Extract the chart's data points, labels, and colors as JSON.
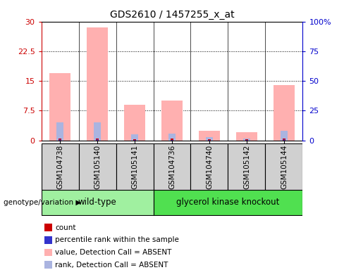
{
  "title": "GDS2610 / 1457255_x_at",
  "samples": [
    "GSM104738",
    "GSM105140",
    "GSM105141",
    "GSM104736",
    "GSM104740",
    "GSM105142",
    "GSM105144"
  ],
  "group_labels": [
    "wild-type",
    "glycerol kinase knockout"
  ],
  "wt_count": 3,
  "ko_count": 4,
  "pink_bars": [
    17.0,
    28.5,
    9.0,
    10.0,
    2.5,
    2.0,
    14.0
  ],
  "blue_bars": [
    4.5,
    4.5,
    1.5,
    1.8,
    0.8,
    0.5,
    2.5
  ],
  "red_bars": [
    0.4,
    0.4,
    0.3,
    0.4,
    0.3,
    0.3,
    0.4
  ],
  "dark_blue_bars": [
    0.25,
    0.25,
    0.2,
    0.2,
    0.15,
    0.15,
    0.25
  ],
  "ylim_left": [
    0,
    30
  ],
  "ylim_right": [
    0,
    100
  ],
  "yticks_left": [
    0,
    7.5,
    15,
    22.5,
    30
  ],
  "yticks_right": [
    0,
    25,
    50,
    75,
    100
  ],
  "yticklabels_left": [
    "0",
    "7.5",
    "15",
    "22.5",
    "30"
  ],
  "yticklabels_right": [
    "0",
    "25",
    "50",
    "75",
    "100%"
  ],
  "left_axis_color": "#cc0000",
  "right_axis_color": "#0000cc",
  "pink_color": "#ffb0b0",
  "light_blue_color": "#aab4e0",
  "red_color": "#cc0000",
  "dark_blue_color": "#3333cc",
  "group_color_wt": "#a0f0a0",
  "group_color_ko": "#50e050",
  "tick_bg_color": "#d0d0d0",
  "legend_items": [
    {
      "label": "count",
      "color": "#cc0000"
    },
    {
      "label": "percentile rank within the sample",
      "color": "#3333cc"
    },
    {
      "label": "value, Detection Call = ABSENT",
      "color": "#ffb0b0"
    },
    {
      "label": "rank, Detection Call = ABSENT",
      "color": "#aab4e0"
    }
  ],
  "genotype_label": "genotype/variation",
  "right_pct_labels": [
    "0",
    "25",
    "50",
    "75",
    "100%"
  ]
}
